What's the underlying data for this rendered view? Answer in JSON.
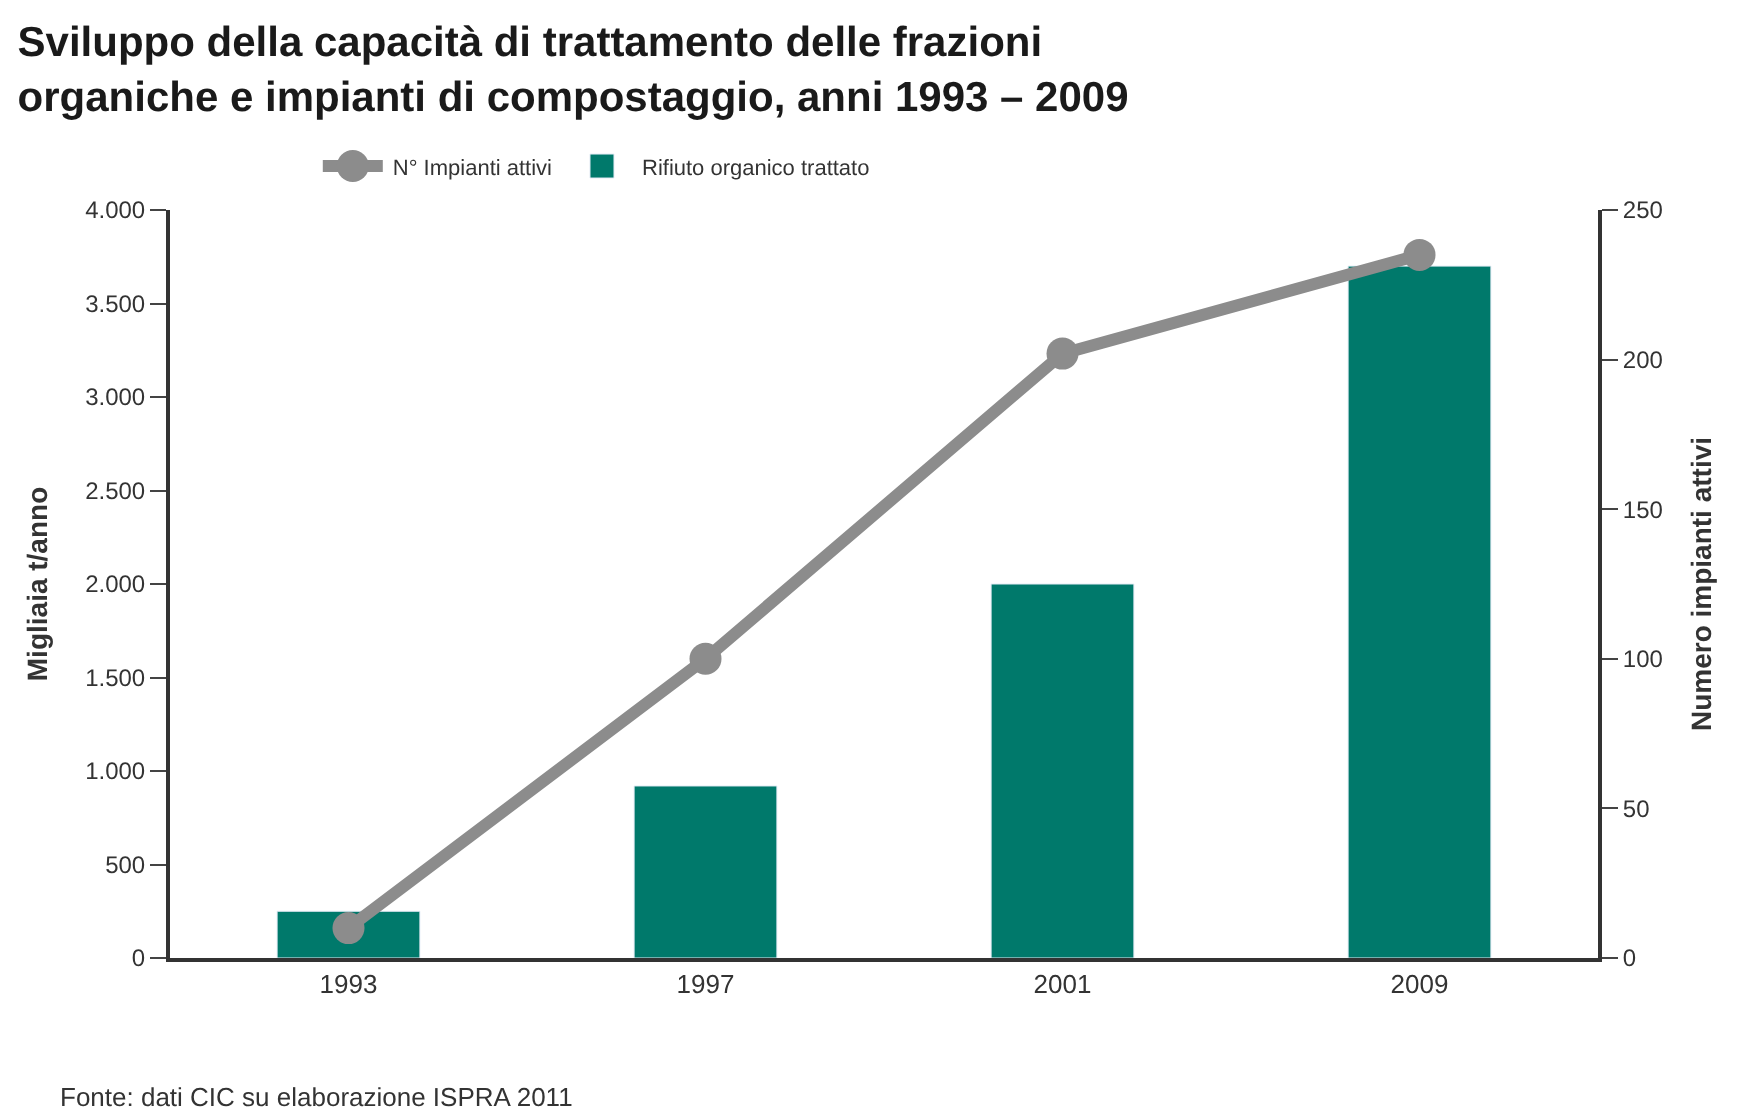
{
  "chart_data": {
    "type": "bar",
    "title": "Sviluppo della capacità di trattamento delle frazioni\norganiche e impianti di compostaggio, anni 1993 – 2009",
    "categories": [
      "1993",
      "1997",
      "2001",
      "2009"
    ],
    "ylabel": "Migliaia t/anno",
    "y2label": "Numero impianti attivi",
    "series": [
      {
        "name": "N° Impianti attivi",
        "type": "line",
        "axis": "y2",
        "color": "#8c8c8c",
        "values": [
          10,
          100,
          202,
          235
        ]
      },
      {
        "name": "Rifiuto organico trattato",
        "color": "#00796b",
        "values": [
          250,
          920,
          2000,
          3700
        ]
      }
    ],
    "ylim": [
      0,
      4000
    ],
    "yticks": [
      0,
      500,
      {
        "value": 1000,
        "label": "1.000"
      },
      {
        "value": 1500,
        "label": "1.500"
      },
      {
        "value": 2000,
        "label": "2.000"
      },
      {
        "value": 2500,
        "label": "2.500"
      },
      {
        "value": 3000,
        "label": "3.000"
      },
      {
        "value": 3500,
        "label": "3.500"
      },
      {
        "value": 4000,
        "label": "4.000"
      }
    ],
    "y2lim": [
      0,
      250
    ],
    "y2ticks": [
      0,
      50,
      100,
      150,
      200,
      250
    ],
    "marker": "circle",
    "line_style": "solid",
    "legend": "top left",
    "annotations": [
      "Fonte: dati CIC su elaborazione ISPRA 2011"
    ]
  }
}
